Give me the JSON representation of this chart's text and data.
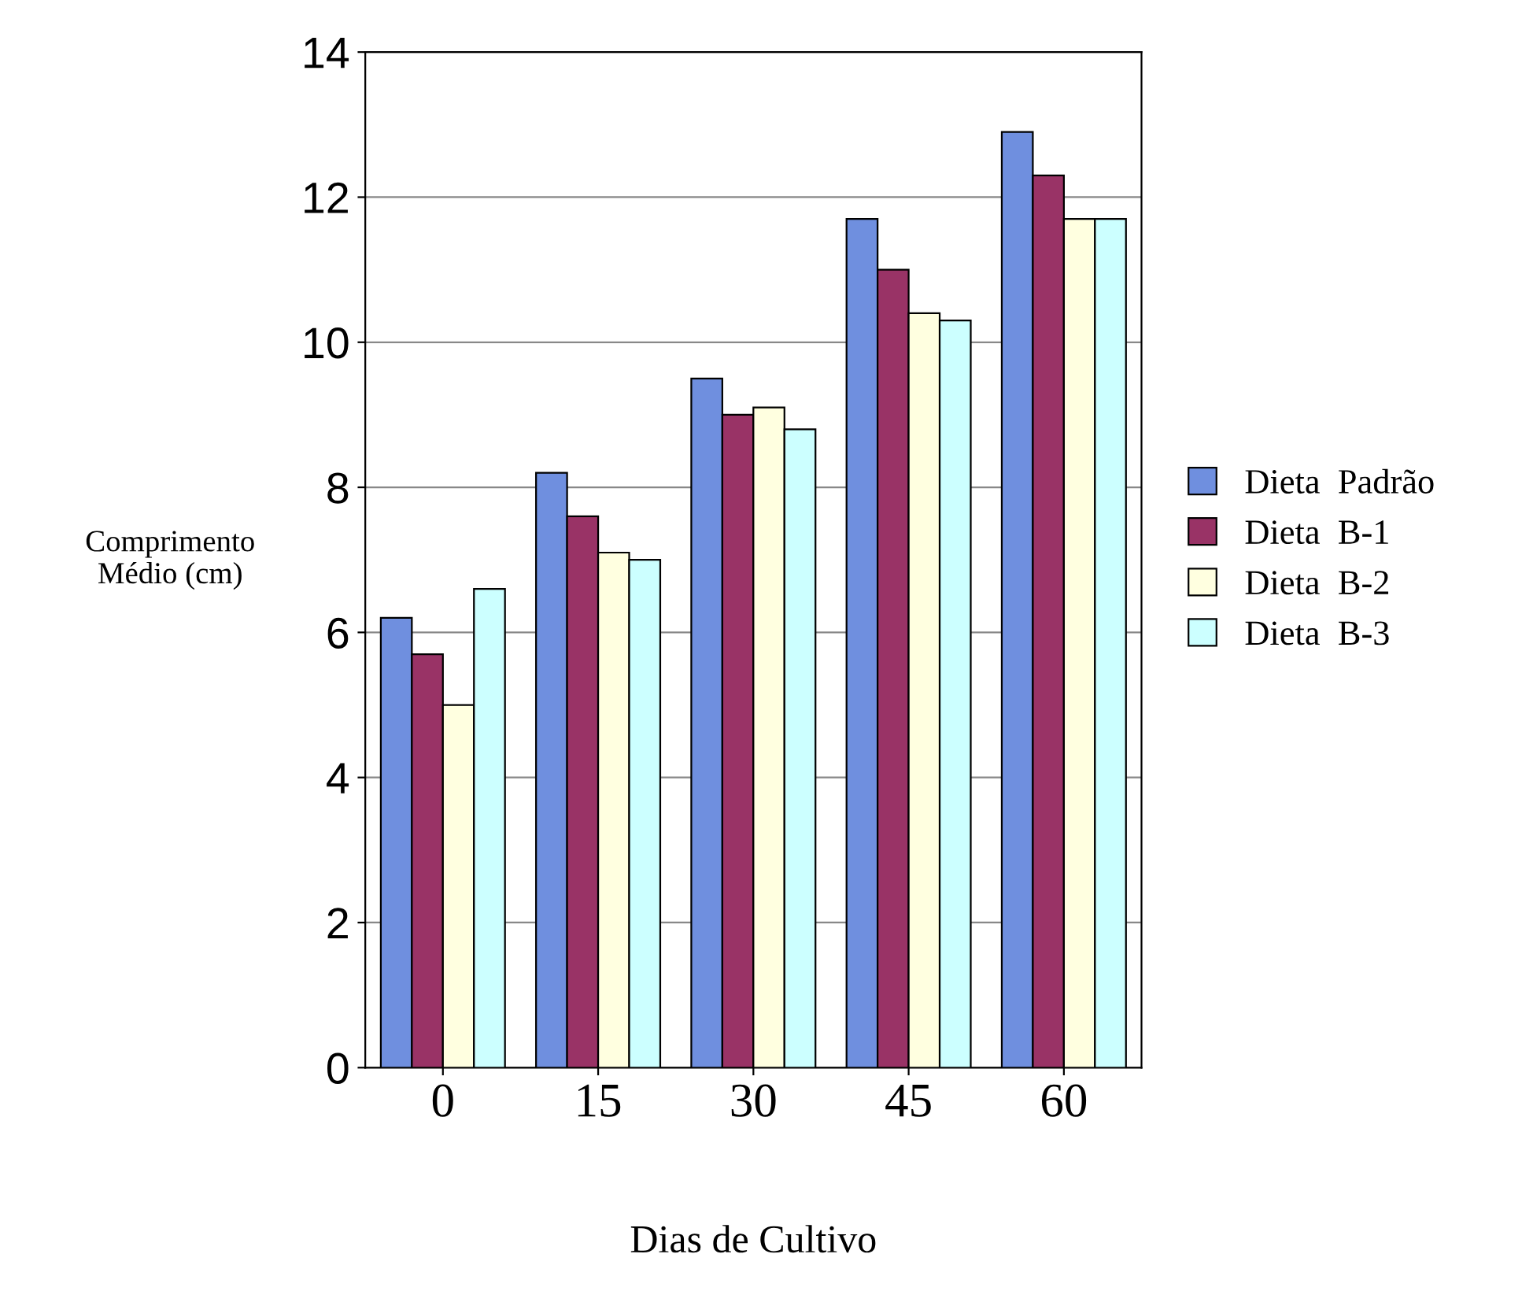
{
  "chart_data": {
    "type": "bar",
    "xlabel": "Dias de Cultivo",
    "ylabel": "Comprimento\nMédio (cm)",
    "categories": [
      "0",
      "15",
      "30",
      "45",
      "60"
    ],
    "series": [
      {
        "name": "Dieta  Padrão",
        "color": "#6f8fdf",
        "values": [
          6.2,
          8.2,
          9.5,
          11.7,
          12.9
        ]
      },
      {
        "name": "Dieta  B-1",
        "color": "#993366",
        "values": [
          5.7,
          7.6,
          9.0,
          11.0,
          12.3
        ]
      },
      {
        "name": "Dieta  B-2",
        "color": "#ffffe0",
        "values": [
          5.0,
          7.1,
          9.1,
          10.4,
          11.7
        ]
      },
      {
        "name": "Dieta  B-3",
        "color": "#ccffff",
        "values": [
          6.6,
          7.0,
          8.8,
          10.3,
          11.7
        ]
      }
    ],
    "ylim": [
      0,
      14
    ],
    "yticks": [
      0,
      2,
      4,
      6,
      8,
      10,
      12,
      14
    ],
    "grid": "y",
    "legend": "right"
  }
}
